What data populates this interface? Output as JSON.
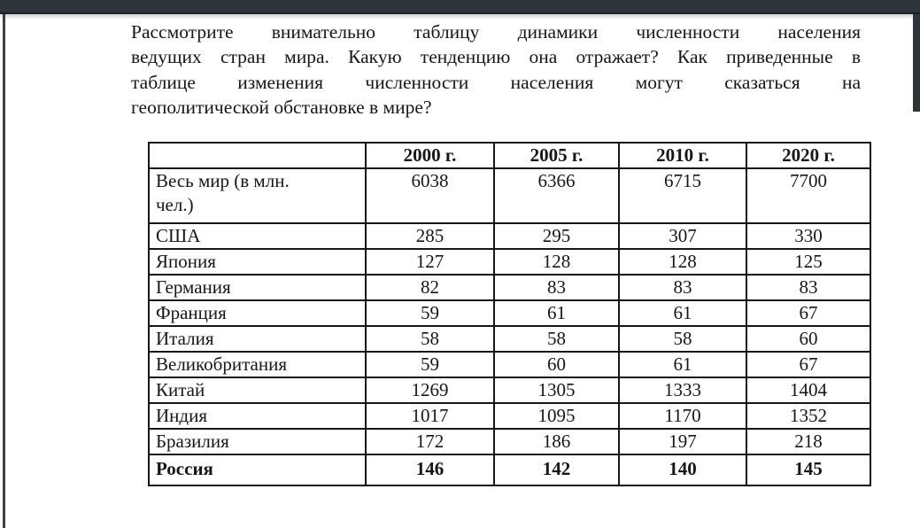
{
  "window": {
    "colors": {
      "top_bar": "#2f343a",
      "left_edge": "#3a3f45",
      "scrollbar_thumb": "#2f343a",
      "page_background": "#ffffff",
      "text": "#161616",
      "table_border": "#161616"
    }
  },
  "document": {
    "question": {
      "lines": [
        "Рассмотрите внимательно таблицу динамики численности населения",
        "ведущих стран мира. Какую тенденцию она отражает? Как приведенные в",
        "таблице изменения численности населения могут сказаться на",
        "геополитической обстановке в мире?"
      ]
    },
    "table": {
      "columns": [
        "",
        "2000 г.",
        "2005 г.",
        "2010 г.",
        "2020 г."
      ],
      "rows": [
        {
          "label": "Весь мир (в млн. чел.)",
          "values": [
            "6038",
            "6366",
            "6715",
            "7700"
          ],
          "bold": false
        },
        {
          "label": "США",
          "values": [
            "285",
            "295",
            "307",
            "330"
          ],
          "bold": false
        },
        {
          "label": "Япония",
          "values": [
            "127",
            "128",
            "128",
            "125"
          ],
          "bold": false
        },
        {
          "label": "Германия",
          "values": [
            "82",
            "83",
            "83",
            "83"
          ],
          "bold": false
        },
        {
          "label": "Франция",
          "values": [
            "59",
            "61",
            "61",
            "67"
          ],
          "bold": false
        },
        {
          "label": "Италия",
          "values": [
            "58",
            "58",
            "58",
            "60"
          ],
          "bold": false
        },
        {
          "label": "Великобритания",
          "values": [
            "59",
            "60",
            "61",
            "67"
          ],
          "bold": false
        },
        {
          "label": "Китай",
          "values": [
            "1269",
            "1305",
            "1333",
            "1404"
          ],
          "bold": false
        },
        {
          "label": "Индия",
          "values": [
            "1017",
            "1095",
            "1170",
            "1352"
          ],
          "bold": false
        },
        {
          "label": "Бразилия",
          "values": [
            "172",
            "186",
            "197",
            "218"
          ],
          "bold": false
        },
        {
          "label": "Россия",
          "values": [
            "146",
            "142",
            "140",
            "145"
          ],
          "bold": true
        }
      ]
    }
  }
}
